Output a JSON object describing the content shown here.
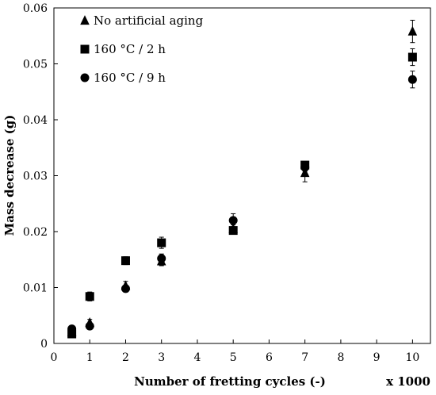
{
  "chart_data": {
    "type": "scatter",
    "xlabel": "Number of fretting cycles (-)",
    "ylabel": "Mass  decrease (g)",
    "x_multiplier_label": "x 1000",
    "xlim": [
      0,
      10.5
    ],
    "ylim": [
      0,
      0.06
    ],
    "xticks": [
      0,
      1,
      2,
      3,
      4,
      5,
      6,
      7,
      8,
      9,
      10
    ],
    "xtick_labels": [
      "0",
      "1",
      "2",
      "3",
      "4",
      "5",
      "6",
      "7",
      "8",
      "9",
      "10"
    ],
    "yticks": [
      0,
      0.01,
      0.02,
      0.03,
      0.04,
      0.05,
      0.06
    ],
    "ytick_labels": [
      "0",
      "0.01",
      "0.02",
      "0.03",
      "0.04",
      "0.05",
      "0.06"
    ],
    "grid": false,
    "legend_position": "top-left",
    "series": [
      {
        "name": "No artificial aging",
        "marker": "triangle",
        "color": "#000000",
        "points": [
          {
            "x": 0.5,
            "y": 0.002,
            "err": 0.0006
          },
          {
            "x": 1,
            "y": 0.0037,
            "err": 0.0006
          },
          {
            "x": 2,
            "y": 0.0103,
            "err": 0.0008
          },
          {
            "x": 3,
            "y": 0.0147,
            "err": 0.0008
          },
          {
            "x": 5,
            "y": 0.0205,
            "err": 0.0007
          },
          {
            "x": 7,
            "y": 0.0305,
            "err": 0.0016
          },
          {
            "x": 10,
            "y": 0.0558,
            "err": 0.002
          }
        ]
      },
      {
        "name": "160 °C / 2 h",
        "marker": "square",
        "color": "#000000",
        "points": [
          {
            "x": 0.5,
            "y": 0.0017,
            "err": 0.0005
          },
          {
            "x": 1,
            "y": 0.0084,
            "err": 0.0008
          },
          {
            "x": 2,
            "y": 0.0148,
            "err": 0.0007
          },
          {
            "x": 3,
            "y": 0.018,
            "err": 0.001
          },
          {
            "x": 5,
            "y": 0.0202,
            "err": 0.0006
          },
          {
            "x": 7,
            "y": 0.0319,
            "err": 0.0006
          },
          {
            "x": 10,
            "y": 0.0512,
            "err": 0.0015
          }
        ]
      },
      {
        "name": "160 °C / 9 h",
        "marker": "circle",
        "color": "#000000",
        "points": [
          {
            "x": 0.5,
            "y": 0.0026,
            "err": 0.0005
          },
          {
            "x": 1,
            "y": 0.0031,
            "err": 0.0005
          },
          {
            "x": 2,
            "y": 0.0098,
            "err": 0.0006
          },
          {
            "x": 3,
            "y": 0.0152,
            "err": 0.0008
          },
          {
            "x": 5,
            "y": 0.022,
            "err": 0.0012
          },
          {
            "x": 7,
            "y": 0.0315,
            "err": 0.0007
          },
          {
            "x": 10,
            "y": 0.0472,
            "err": 0.0015
          }
        ]
      }
    ]
  }
}
